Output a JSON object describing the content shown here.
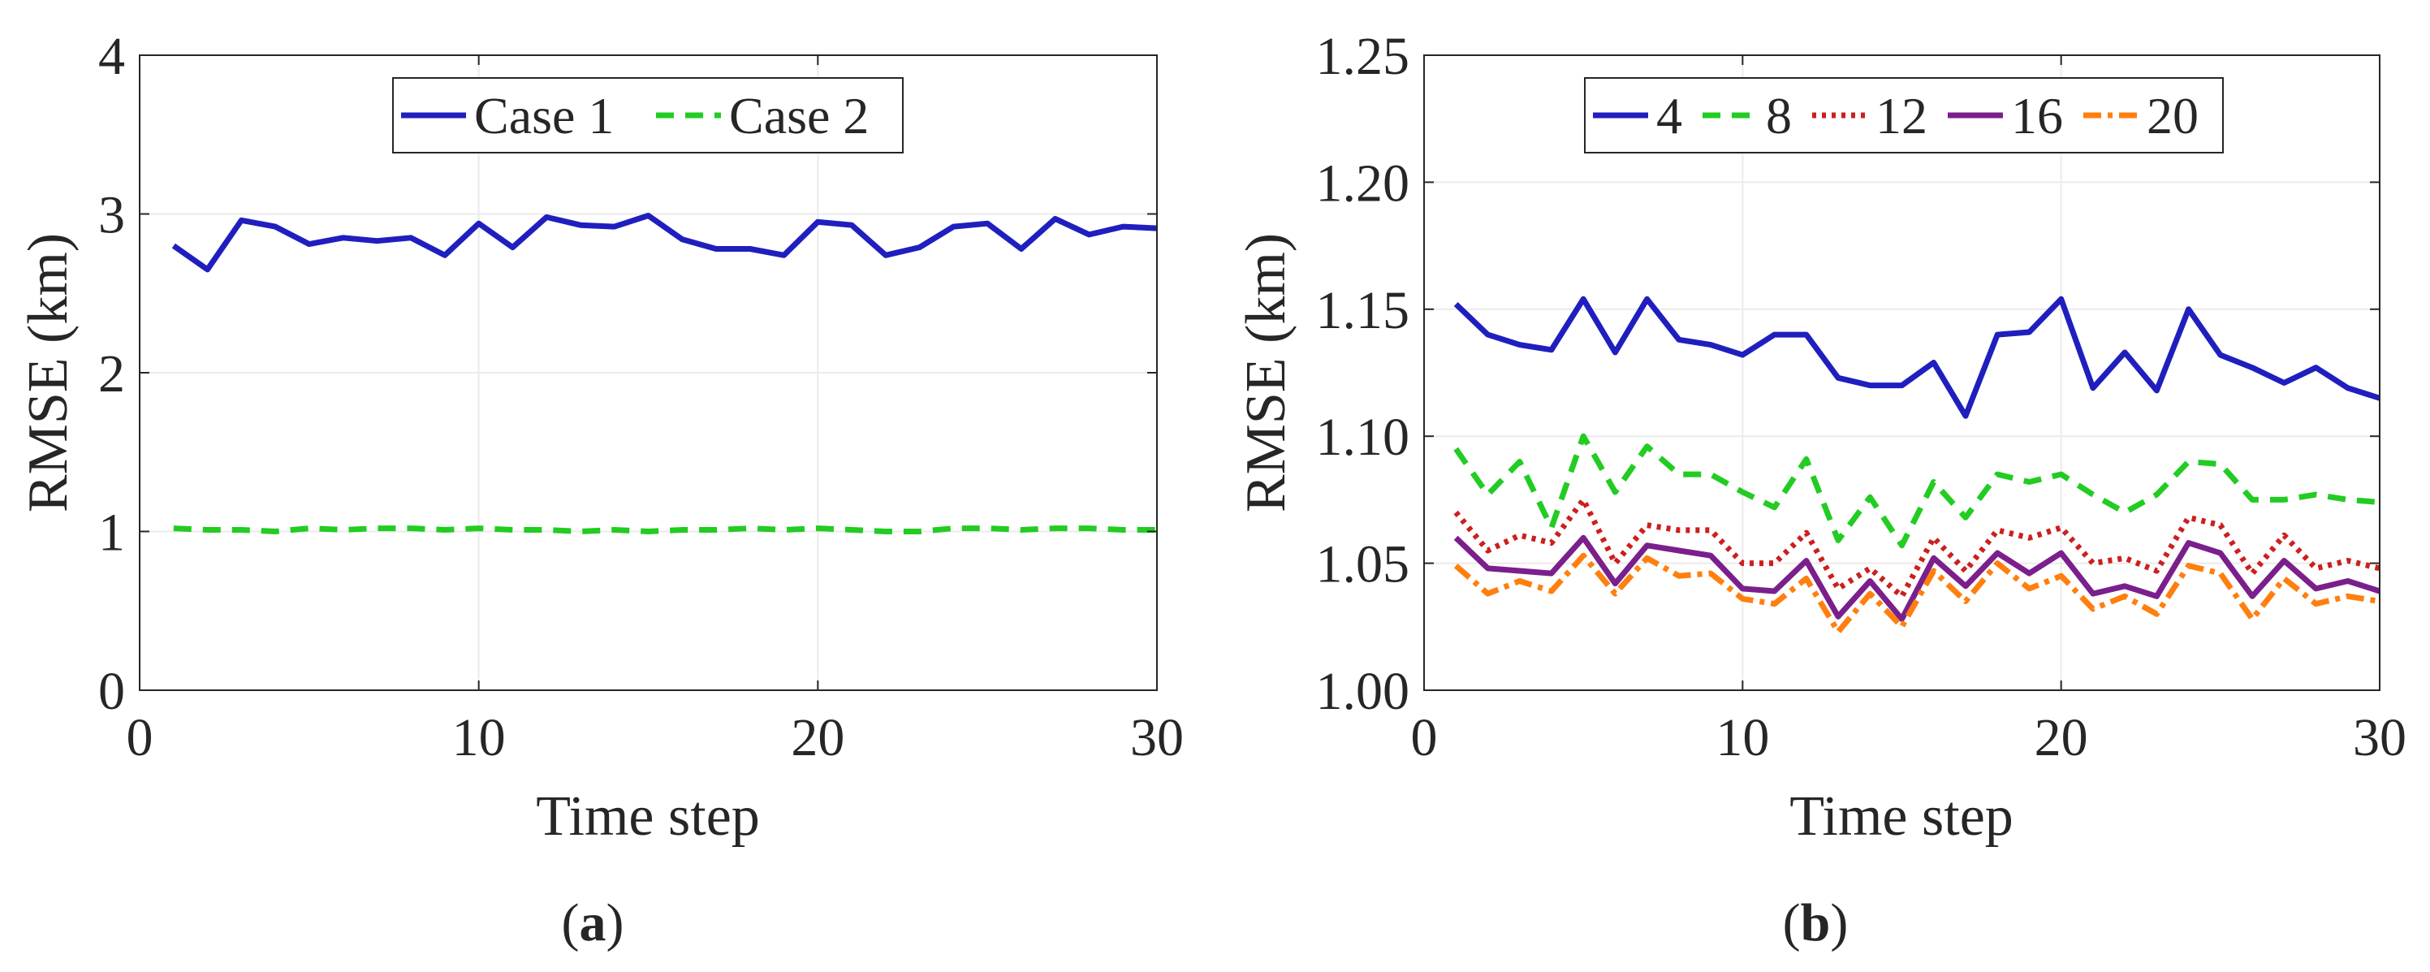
{
  "chart_data": [
    {
      "type": "line",
      "panel_label": "a",
      "xlabel": "Time step",
      "ylabel": "RMSE (km)",
      "xlim": [
        0,
        30
      ],
      "ylim": [
        0,
        4
      ],
      "xticks": [
        0,
        10,
        20,
        30
      ],
      "yticks": [
        0,
        1,
        2,
        3,
        4
      ],
      "ytick_labels": [
        "0",
        "1",
        "2",
        "3",
        "4"
      ],
      "grid": true,
      "legend": "top-center",
      "x": [
        1,
        2,
        3,
        4,
        5,
        6,
        7,
        8,
        9,
        10,
        11,
        12,
        13,
        14,
        15,
        16,
        17,
        18,
        19,
        20,
        21,
        22,
        23,
        24,
        25,
        26,
        27,
        28,
        29,
        30
      ],
      "series": [
        {
          "name": "Case 1",
          "color": "#1f1fbf",
          "dash": "solid",
          "values": [
            2.8,
            2.65,
            2.96,
            2.92,
            2.81,
            2.85,
            2.83,
            2.85,
            2.74,
            2.94,
            2.79,
            2.98,
            2.93,
            2.92,
            2.99,
            2.84,
            2.78,
            2.78,
            2.74,
            2.95,
            2.93,
            2.74,
            2.79,
            2.92,
            2.94,
            2.78,
            2.97,
            2.87,
            2.92,
            2.91
          ]
        },
        {
          "name": "Case 2",
          "color": "#22cc22",
          "dash": "dashed",
          "values": [
            1.02,
            1.01,
            1.01,
            1.0,
            1.02,
            1.01,
            1.02,
            1.02,
            1.01,
            1.02,
            1.01,
            1.01,
            1.0,
            1.01,
            1.0,
            1.01,
            1.01,
            1.02,
            1.01,
            1.02,
            1.01,
            1.0,
            1.0,
            1.02,
            1.02,
            1.01,
            1.02,
            1.02,
            1.01,
            1.01
          ]
        }
      ]
    },
    {
      "type": "line",
      "panel_label": "b",
      "xlabel": "Time step",
      "ylabel": "RMSE (km)",
      "xlim": [
        0,
        30
      ],
      "ylim": [
        1.0,
        1.25
      ],
      "xticks": [
        0,
        10,
        20,
        30
      ],
      "yticks": [
        1.0,
        1.05,
        1.1,
        1.15,
        1.2,
        1.25
      ],
      "ytick_labels": [
        "1.00",
        "1.05",
        "1.10",
        "1.15",
        "1.20",
        "1.25"
      ],
      "grid": true,
      "legend": "top-center",
      "x": [
        1,
        2,
        3,
        4,
        5,
        6,
        7,
        8,
        9,
        10,
        11,
        12,
        13,
        14,
        15,
        16,
        17,
        18,
        19,
        20,
        21,
        22,
        23,
        24,
        25,
        26,
        27,
        28,
        29,
        30
      ],
      "series": [
        {
          "name": "4",
          "color": "#1f1fbf",
          "dash": "solid",
          "values": [
            1.152,
            1.14,
            1.136,
            1.134,
            1.154,
            1.133,
            1.154,
            1.138,
            1.136,
            1.132,
            1.14,
            1.14,
            1.123,
            1.12,
            1.12,
            1.129,
            1.108,
            1.14,
            1.141,
            1.154,
            1.119,
            1.133,
            1.118,
            1.15,
            1.132,
            1.127,
            1.121,
            1.127,
            1.119,
            1.115
          ]
        },
        {
          "name": "8",
          "color": "#22cc22",
          "dash": "dashed",
          "values": [
            1.095,
            1.077,
            1.09,
            1.064,
            1.1,
            1.078,
            1.096,
            1.085,
            1.085,
            1.078,
            1.072,
            1.091,
            1.059,
            1.076,
            1.057,
            1.082,
            1.068,
            1.085,
            1.082,
            1.085,
            1.077,
            1.07,
            1.077,
            1.09,
            1.089,
            1.075,
            1.075,
            1.077,
            1.075,
            1.074
          ]
        },
        {
          "name": "12",
          "color": "#cc1f1f",
          "dash": "dotted",
          "values": [
            1.07,
            1.055,
            1.061,
            1.058,
            1.075,
            1.05,
            1.065,
            1.063,
            1.063,
            1.05,
            1.05,
            1.062,
            1.04,
            1.048,
            1.037,
            1.06,
            1.047,
            1.063,
            1.06,
            1.064,
            1.05,
            1.052,
            1.047,
            1.068,
            1.065,
            1.046,
            1.061,
            1.048,
            1.051,
            1.048
          ]
        },
        {
          "name": "16",
          "color": "#7a1f8c",
          "dash": "solid",
          "values": [
            1.06,
            1.048,
            1.047,
            1.046,
            1.06,
            1.042,
            1.057,
            1.055,
            1.053,
            1.04,
            1.039,
            1.051,
            1.029,
            1.043,
            1.028,
            1.052,
            1.041,
            1.054,
            1.046,
            1.054,
            1.038,
            1.041,
            1.037,
            1.058,
            1.054,
            1.037,
            1.051,
            1.04,
            1.043,
            1.039
          ]
        },
        {
          "name": "20",
          "color": "#ff7f0e",
          "dash": "dashdot",
          "values": [
            1.049,
            1.038,
            1.043,
            1.039,
            1.053,
            1.038,
            1.052,
            1.045,
            1.046,
            1.036,
            1.034,
            1.044,
            1.023,
            1.038,
            1.025,
            1.047,
            1.035,
            1.05,
            1.04,
            1.045,
            1.032,
            1.037,
            1.03,
            1.049,
            1.046,
            1.028,
            1.044,
            1.034,
            1.037,
            1.035
          ]
        }
      ]
    }
  ],
  "captions": [
    {
      "open": "(",
      "letter": "a",
      "close": ")"
    },
    {
      "open": "(",
      "letter": "b",
      "close": ")"
    }
  ]
}
